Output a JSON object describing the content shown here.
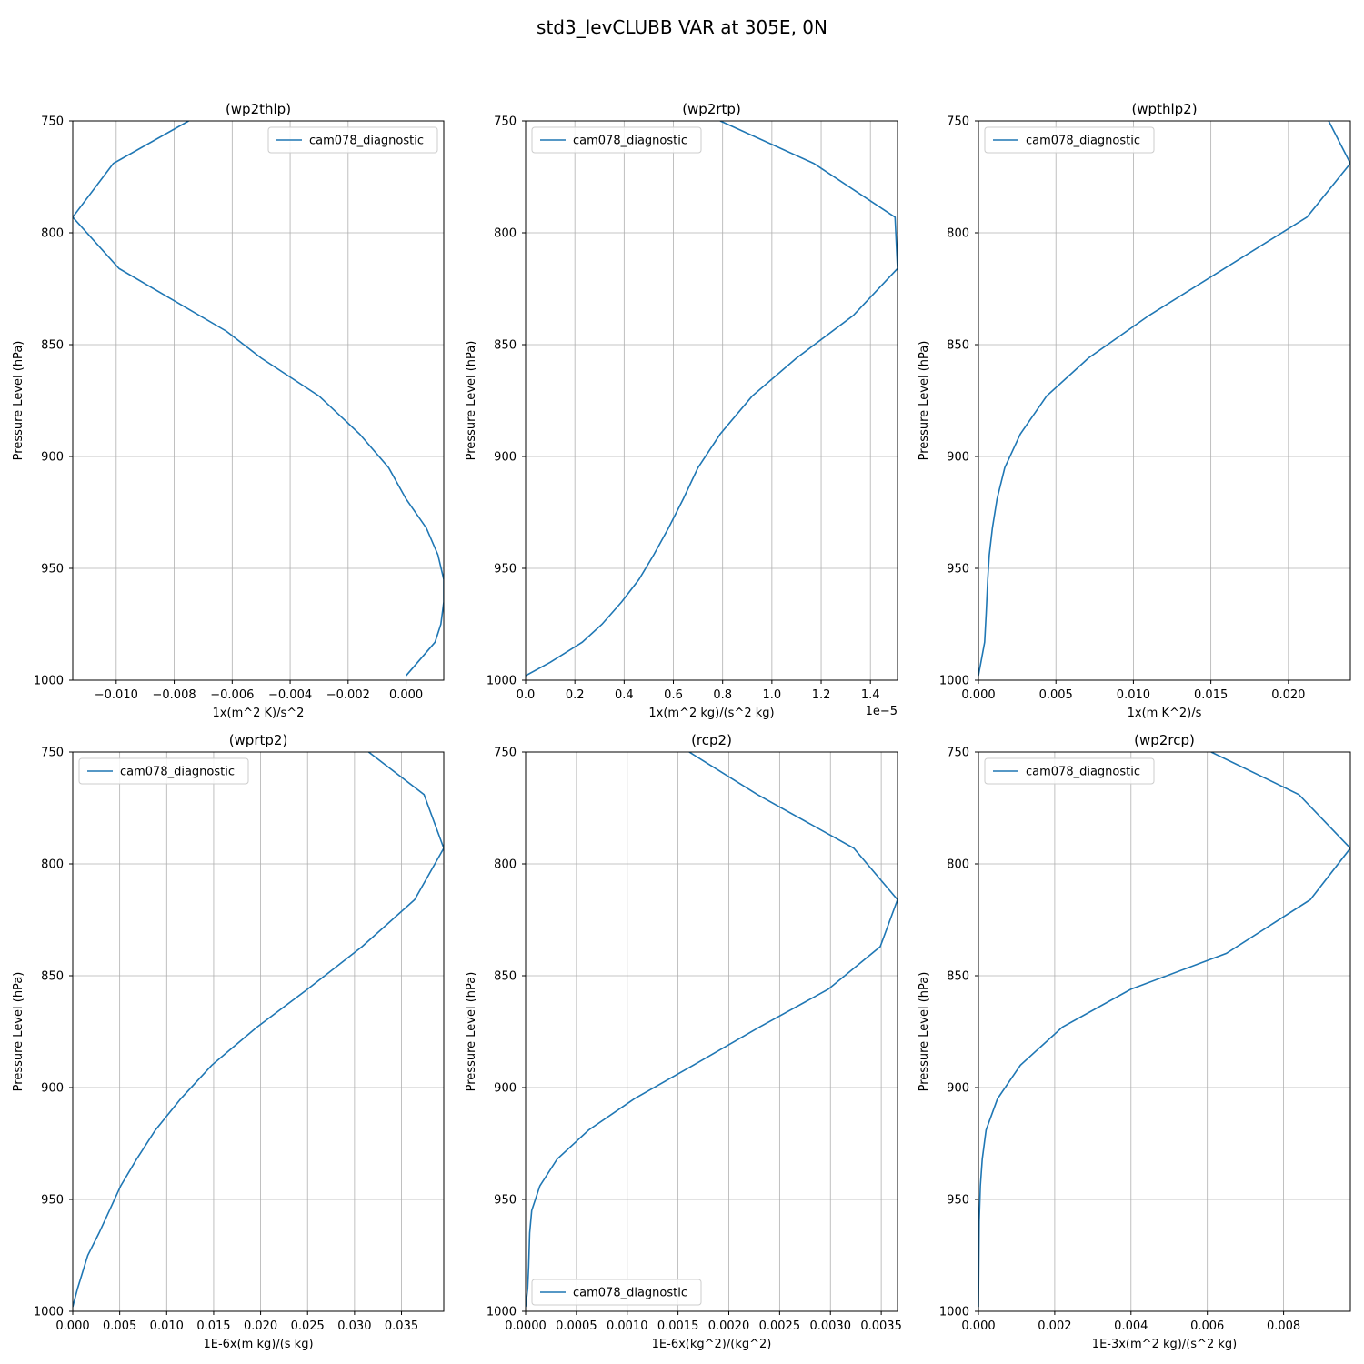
{
  "figure": {
    "title": "std3_levCLUBB VAR at 305E, 0N",
    "series_color": "#1f77b4"
  },
  "chart_data": [
    {
      "type": "line",
      "title": "(wp2thlp)",
      "xlabel": "1x(m^2 K)/s^2",
      "ylabel": "Pressure Level (hPa)",
      "xlim": [
        -0.0115,
        0.0013
      ],
      "ylim": [
        1000,
        750
      ],
      "y_inverted": true,
      "xticks": [
        -0.01,
        -0.008,
        -0.006,
        -0.004,
        -0.002,
        0.0
      ],
      "xtick_labels": [
        "−0.010",
        "−0.008",
        "−0.006",
        "−0.004",
        "−0.002",
        "0.000"
      ],
      "yticks": [
        750,
        800,
        850,
        900,
        950,
        1000
      ],
      "ytick_labels": [
        "750",
        "800",
        "850",
        "900",
        "950",
        "1000"
      ],
      "x_offset_label": "",
      "grid": true,
      "legend": {
        "position": "upper-right",
        "entries": [
          "cam078_diagnostic"
        ]
      },
      "series": [
        {
          "name": "cam078_diagnostic",
          "x": [
            -0.0075,
            -0.0101,
            -0.0115,
            -0.0099,
            -0.0062,
            -0.005,
            -0.003,
            -0.0016,
            -0.0006,
            0.0,
            0.0007,
            0.0011,
            0.0013,
            0.0013,
            0.0012,
            0.001,
            0.0
          ],
          "y": [
            750,
            769,
            793,
            816,
            844,
            856,
            873,
            890,
            905,
            919,
            932,
            944,
            955,
            965,
            975,
            983,
            998
          ]
        }
      ]
    },
    {
      "type": "line",
      "title": "(wp2rtp)",
      "xlabel": "1x(m^2 kg)/(s^2 kg)",
      "ylabel": "Pressure Level (hPa)",
      "xlim": [
        0,
        1.51e-05
      ],
      "ylim": [
        1000,
        750
      ],
      "y_inverted": true,
      "xticks": [
        0,
        2e-06,
        4e-06,
        6e-06,
        8e-06,
        1e-05,
        1.2e-05,
        1.4e-05
      ],
      "xtick_labels": [
        "0.0",
        "0.2",
        "0.4",
        "0.6",
        "0.8",
        "1.0",
        "1.2",
        "1.4"
      ],
      "yticks": [
        750,
        800,
        850,
        900,
        950,
        1000
      ],
      "ytick_labels": [
        "750",
        "800",
        "850",
        "900",
        "950",
        "1000"
      ],
      "x_offset_label": "1e−5",
      "grid": true,
      "legend": {
        "position": "upper-left",
        "entries": [
          "cam078_diagnostic"
        ]
      },
      "series": [
        {
          "name": "cam078_diagnostic",
          "x": [
            7.9e-06,
            1.17e-05,
            1.5e-05,
            1.51e-05,
            1.33e-05,
            1.1e-05,
            9.2e-06,
            7.9e-06,
            7e-06,
            6.4e-06,
            5.8e-06,
            5.2e-06,
            4.6e-06,
            3.9e-06,
            3.1e-06,
            2.3e-06,
            1e-06,
            0
          ],
          "y": [
            750,
            769,
            793,
            816,
            837,
            856,
            873,
            890,
            905,
            919,
            932,
            944,
            955,
            965,
            975,
            983,
            992,
            998
          ]
        }
      ]
    },
    {
      "type": "line",
      "title": "(wpthlp2)",
      "xlabel": "1x(m K^2)/s",
      "ylabel": "Pressure Level (hPa)",
      "xlim": [
        0,
        0.024
      ],
      "ylim": [
        1000,
        750
      ],
      "y_inverted": true,
      "xticks": [
        0,
        0.005,
        0.01,
        0.015,
        0.02
      ],
      "xtick_labels": [
        "0.000",
        "0.005",
        "0.010",
        "0.015",
        "0.020"
      ],
      "yticks": [
        750,
        800,
        850,
        900,
        950,
        1000
      ],
      "ytick_labels": [
        "750",
        "800",
        "850",
        "900",
        "950",
        "1000"
      ],
      "x_offset_label": "",
      "grid": true,
      "legend": {
        "position": "upper-left",
        "entries": [
          "cam078_diagnostic"
        ]
      },
      "series": [
        {
          "name": "cam078_diagnostic",
          "x": [
            0.0226,
            0.024,
            0.0212,
            0.011,
            0.0071,
            0.0044,
            0.0027,
            0.0017,
            0.0012,
            0.0009,
            0.0007,
            0.0006,
            0.0005,
            0.0004,
            0.0
          ],
          "y": [
            750,
            769,
            793,
            837,
            856,
            873,
            890,
            905,
            919,
            932,
            944,
            955,
            970,
            983,
            998
          ]
        }
      ]
    },
    {
      "type": "line",
      "title": "(wprtp2)",
      "xlabel": "1E-6x(m kg)/(s kg)",
      "ylabel": "Pressure Level (hPa)",
      "xlim": [
        0,
        0.0395
      ],
      "ylim": [
        1000,
        750
      ],
      "y_inverted": true,
      "xticks": [
        0,
        0.005,
        0.01,
        0.015,
        0.02,
        0.025,
        0.03,
        0.035
      ],
      "xtick_labels": [
        "0.000",
        "0.005",
        "0.010",
        "0.015",
        "0.020",
        "0.025",
        "0.030",
        "0.035"
      ],
      "yticks": [
        750,
        800,
        850,
        900,
        950,
        1000
      ],
      "ytick_labels": [
        "750",
        "800",
        "850",
        "900",
        "950",
        "1000"
      ],
      "x_offset_label": "",
      "grid": true,
      "legend": {
        "position": "upper-left",
        "entries": [
          "cam078_diagnostic"
        ]
      },
      "series": [
        {
          "name": "cam078_diagnostic",
          "x": [
            0.0315,
            0.0374,
            0.0395,
            0.0364,
            0.0308,
            0.025,
            0.0196,
            0.0148,
            0.0115,
            0.0088,
            0.0068,
            0.0051,
            0.0039,
            0.0028,
            0.0016,
            0.0005,
            0.0
          ],
          "y": [
            750,
            769,
            793,
            816,
            837,
            856,
            873,
            890,
            905,
            919,
            932,
            944,
            955,
            965,
            975,
            990,
            998
          ]
        }
      ]
    },
    {
      "type": "line",
      "title": "(rcp2)",
      "xlabel": "1E-6x(kg^2)/(kg^2)",
      "ylabel": "Pressure Level (hPa)",
      "xlim": [
        0,
        0.00366
      ],
      "ylim": [
        1000,
        750
      ],
      "y_inverted": true,
      "xticks": [
        0,
        0.0005,
        0.001,
        0.0015,
        0.002,
        0.0025,
        0.003,
        0.0035
      ],
      "xtick_labels": [
        "0.0000",
        "0.0005",
        "0.0010",
        "0.0015",
        "0.0020",
        "0.0025",
        "0.0030",
        "0.0035"
      ],
      "yticks": [
        750,
        800,
        850,
        900,
        950,
        1000
      ],
      "ytick_labels": [
        "750",
        "800",
        "850",
        "900",
        "950",
        "1000"
      ],
      "x_offset_label": "",
      "grid": true,
      "legend": {
        "position": "lower-left",
        "entries": [
          "cam078_diagnostic"
        ]
      },
      "series": [
        {
          "name": "cam078_diagnostic",
          "x": [
            0.00161,
            0.00228,
            0.00323,
            0.00366,
            0.00349,
            0.00298,
            0.0023,
            0.00165,
            0.00107,
            0.00062,
            0.00031,
            0.00014,
            6e-05,
            4e-05,
            3e-05,
            2e-05,
            0.0
          ],
          "y": [
            750,
            769,
            793,
            816,
            837,
            856,
            873,
            890,
            905,
            919,
            932,
            944,
            955,
            965,
            980,
            990,
            998
          ]
        }
      ]
    },
    {
      "type": "line",
      "title": "(wp2rcp)",
      "xlabel": "1E-3x(m^2 kg)/(s^2 kg)",
      "ylabel": "Pressure Level (hPa)",
      "xlim": [
        0,
        0.00975
      ],
      "ylim": [
        1000,
        750
      ],
      "y_inverted": true,
      "xticks": [
        0,
        0.002,
        0.004,
        0.006,
        0.008
      ],
      "xtick_labels": [
        "0.000",
        "0.002",
        "0.004",
        "0.006",
        "0.008"
      ],
      "yticks": [
        750,
        800,
        850,
        900,
        950,
        1000
      ],
      "ytick_labels": [
        "750",
        "800",
        "850",
        "900",
        "950",
        "1000"
      ],
      "x_offset_label": "",
      "grid": true,
      "legend": {
        "position": "upper-left",
        "entries": [
          "cam078_diagnostic"
        ]
      },
      "series": [
        {
          "name": "cam078_diagnostic",
          "x": [
            0.0061,
            0.0084,
            0.00975,
            0.0087,
            0.0065,
            0.004,
            0.0022,
            0.0011,
            0.0005,
            0.0002,
            0.0001,
            5e-05,
            2e-05,
            0.0
          ],
          "y": [
            750,
            769,
            793,
            816,
            840,
            856,
            873,
            890,
            905,
            919,
            932,
            944,
            960,
            998
          ]
        }
      ]
    }
  ]
}
